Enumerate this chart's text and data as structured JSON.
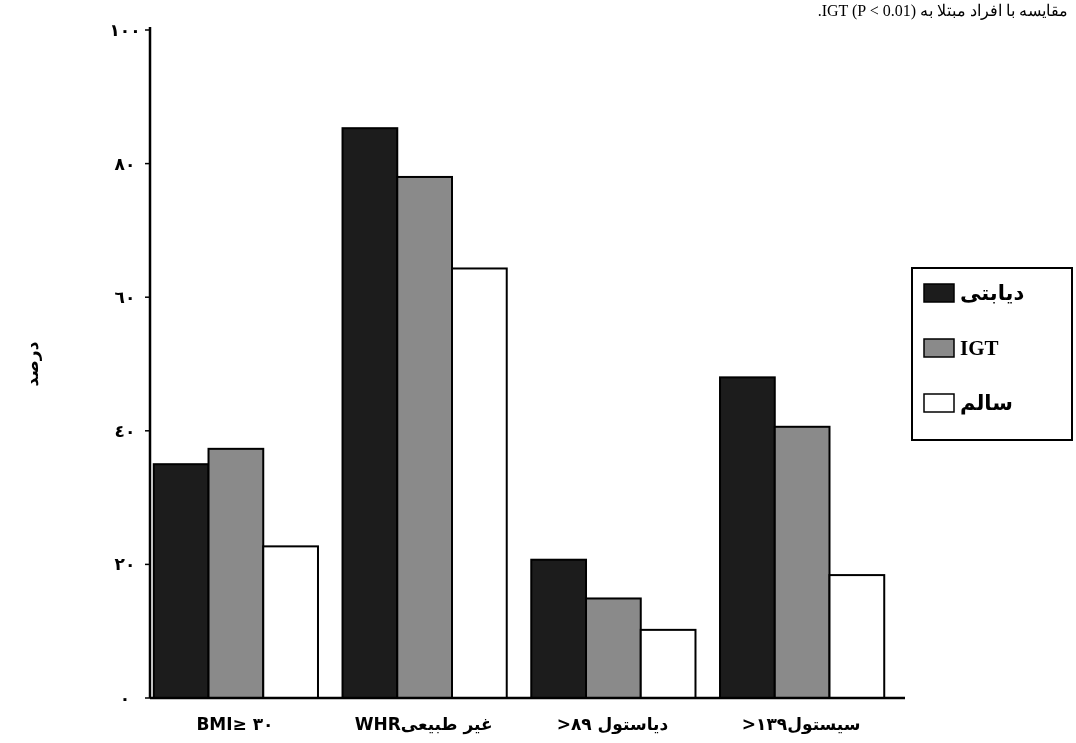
{
  "chart_data": {
    "type": "bar",
    "annotations": [
      "مقایسه با افراد مبتلا به IGT (P < 0.01)."
    ],
    "ylabel": "درصد",
    "categories": [
      "BMI≥ ۳۰",
      "غیر طبیعیWHR",
      "دیاستول ۸۹<",
      "سیستول۱۳۹<"
    ],
    "series": [
      {
        "name": "دیابتی",
        "color": "#1c1c1c",
        "values": [
          35,
          85.3,
          20.7,
          48
        ]
      },
      {
        "name": "IGT",
        "color": "#8a8a8a",
        "values": [
          37.3,
          78,
          14.9,
          40.6
        ]
      },
      {
        "name": "سالم",
        "color": "#ffffff",
        "values": [
          22.7,
          64.3,
          10.2,
          18.4
        ]
      }
    ],
    "ylim": [
      0,
      100
    ],
    "yticks": [
      {
        "value": 0,
        "label": "۰"
      },
      {
        "value": 20,
        "label": "۲۰"
      },
      {
        "value": 40,
        "label": "٤۰"
      },
      {
        "value": 60,
        "label": "٦۰"
      },
      {
        "value": 80,
        "label": "۸۰"
      },
      {
        "value": 100,
        "label": "۱۰۰"
      }
    ],
    "legend": "right",
    "grid": false
  }
}
